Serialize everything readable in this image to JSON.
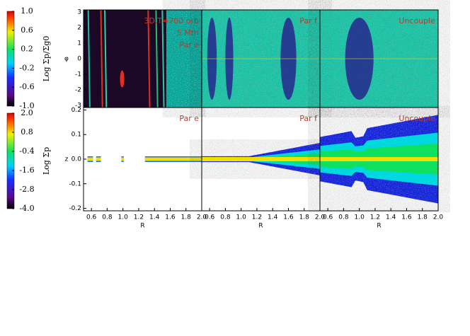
{
  "chart_data": [
    {
      "type": "heatmap",
      "ylabel": "φ",
      "ylim": [
        -3.14,
        3.14
      ],
      "yticks": [
        -3,
        -2,
        -1,
        0,
        1,
        2,
        3
      ],
      "xlim": [
        0.5,
        2.0
      ],
      "annotations": [
        "3D,T=700 orb",
        "5 Mth",
        "Par e"
      ]
    },
    {
      "type": "heatmap",
      "ylim": [
        -3.14,
        3.14
      ],
      "xlim": [
        0.5,
        2.0
      ],
      "annotations": [
        "Par f"
      ]
    },
    {
      "type": "heatmap",
      "ylim": [
        -3.14,
        3.14
      ],
      "xlim": [
        0.5,
        2.0
      ],
      "annotations": [
        "Uncouple"
      ]
    },
    {
      "type": "heatmap",
      "ylabel": "z",
      "xlabel": "R",
      "ylim": [
        -0.21,
        0.21
      ],
      "yticks": [
        -0.2,
        -0.1,
        {
          "value": 0,
          "label": "0.0"
        },
        0.1,
        0.2
      ],
      "xlim": [
        0.5,
        2.0
      ],
      "xticks": [
        0.6,
        0.8,
        {
          "value": 1,
          "label": "1.0"
        },
        1.2,
        1.4,
        1.6,
        1.8,
        {
          "value": 2,
          "label": "2.0"
        }
      ],
      "annotations": [
        "Par e"
      ]
    },
    {
      "type": "heatmap",
      "xlabel": "R",
      "ylim": [
        -0.21,
        0.21
      ],
      "xlim": [
        0.5,
        2.0
      ],
      "xticks": [
        0.6,
        0.8,
        {
          "value": 1,
          "label": "1.0"
        },
        1.2,
        1.4,
        1.6,
        1.8,
        {
          "value": 2,
          "label": "2.0"
        }
      ],
      "annotations": [
        "Par f"
      ]
    },
    {
      "type": "heatmap",
      "xlabel": "R",
      "ylim": [
        -0.21,
        0.21
      ],
      "xlim": [
        0.5,
        2.0
      ],
      "xticks": [
        0.6,
        0.8,
        {
          "value": 1,
          "label": "1.0"
        },
        1.2,
        1.4,
        1.6,
        1.8,
        {
          "value": 2,
          "label": "2.0"
        }
      ],
      "annotations": [
        "Uncouple"
      ]
    },
    {
      "type": "colorbar",
      "label": "Log Σp/Σg0",
      "clim": [
        -1,
        1
      ],
      "ticks": [
        {
          "value": 1,
          "label": "1.0"
        },
        0.6,
        0.2,
        -0.2,
        -0.6,
        {
          "value": -1,
          "label": "-1.0"
        }
      ]
    },
    {
      "type": "colorbar",
      "label": "Log Σp",
      "clim": [
        -4,
        2
      ],
      "ticks": [
        {
          "value": 2,
          "label": "2.0"
        },
        0.8,
        -0.4,
        -1.6,
        -2.8,
        {
          "value": -4,
          "label": "-4.0"
        }
      ]
    }
  ]
}
